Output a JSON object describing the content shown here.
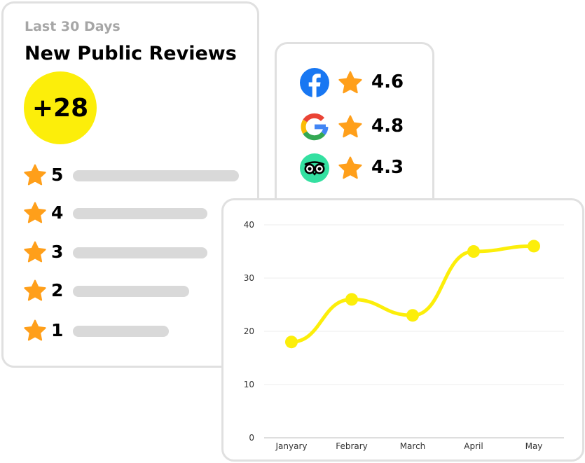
{
  "reviews_card": {
    "subtitle": "Last 30 Days",
    "title": "New Public Reviews",
    "count": "+28",
    "ratings": [
      {
        "stars": "5",
        "bar_fraction": 1.0
      },
      {
        "stars": "4",
        "bar_fraction": 0.81
      },
      {
        "stars": "3",
        "bar_fraction": 0.81
      },
      {
        "stars": "2",
        "bar_fraction": 0.7
      },
      {
        "stars": "1",
        "bar_fraction": 0.58
      }
    ]
  },
  "platforms": [
    {
      "name": "facebook",
      "icon": "facebook-icon",
      "score": "4.6"
    },
    {
      "name": "google",
      "icon": "google-icon",
      "score": "4.8"
    },
    {
      "name": "tripadvisor",
      "icon": "tripadvisor-icon",
      "score": "4.3"
    }
  ],
  "colors": {
    "accent_yellow": "#fcee0a",
    "star_orange": "#ff9f1a",
    "bar_gray": "#d9d9d9",
    "card_border": "#e0e0e0",
    "muted_text": "#a6a6a6",
    "facebook_blue": "#1877f2",
    "tripadvisor_green": "#34e0a1"
  },
  "chart_data": {
    "type": "line",
    "categories": [
      "Janyary",
      "Febrary",
      "March",
      "April",
      "May"
    ],
    "series": [
      {
        "values": [
          18,
          26,
          23,
          35,
          36
        ]
      }
    ],
    "ylim": [
      0,
      40
    ],
    "yticks": [
      "0",
      "10",
      "20",
      "30",
      "40"
    ],
    "grid": true,
    "smooth": true,
    "color": "#fcee0a"
  }
}
